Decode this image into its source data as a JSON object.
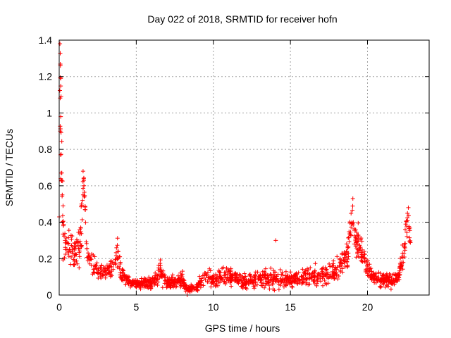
{
  "chart_data": {
    "type": "scatter",
    "title": "Day 022 of 2018, SRMTID for receiver hofn",
    "xlabel": "GPS time / hours",
    "ylabel": "SRMTID / TECUs",
    "xlim": [
      0,
      24
    ],
    "ylim": [
      0,
      1.4
    ],
    "xticks": [
      0,
      5,
      10,
      15,
      20
    ],
    "yticks": [
      0,
      0.2,
      0.4,
      0.6,
      0.8,
      1.0,
      1.2,
      1.4
    ],
    "xtick_labels": [
      "0",
      "5",
      "10",
      "15",
      "20"
    ],
    "ytick_labels": [
      "0",
      "0.2",
      "0.4",
      "0.6",
      "0.8",
      "1",
      "1.2",
      "1.4"
    ],
    "grid": true,
    "marker": "+",
    "color": "#ff0000",
    "series": [
      {
        "name": "SRMTID",
        "profile": [
          [
            0.0,
            0.3,
            0.1
          ],
          [
            0.05,
            1.38,
            0.45
          ],
          [
            0.1,
            1.0,
            0.35
          ],
          [
            0.2,
            0.45,
            0.2
          ],
          [
            0.3,
            0.28,
            0.1
          ],
          [
            0.5,
            0.25,
            0.08
          ],
          [
            0.8,
            0.26,
            0.09
          ],
          [
            1.0,
            0.22,
            0.09
          ],
          [
            1.3,
            0.26,
            0.1
          ],
          [
            1.5,
            0.45,
            0.2
          ],
          [
            1.6,
            0.63,
            0.05
          ],
          [
            1.8,
            0.24,
            0.1
          ],
          [
            2.0,
            0.18,
            0.06
          ],
          [
            2.5,
            0.14,
            0.05
          ],
          [
            3.0,
            0.13,
            0.05
          ],
          [
            3.5,
            0.14,
            0.05
          ],
          [
            3.8,
            0.22,
            0.08
          ],
          [
            4.0,
            0.12,
            0.05
          ],
          [
            4.5,
            0.07,
            0.03
          ],
          [
            5.0,
            0.06,
            0.02
          ],
          [
            6.0,
            0.07,
            0.03
          ],
          [
            6.5,
            0.12,
            0.06
          ],
          [
            7.0,
            0.07,
            0.03
          ],
          [
            8.0,
            0.08,
            0.04
          ],
          [
            8.3,
            0.03,
            0.02
          ],
          [
            9.0,
            0.05,
            0.03
          ],
          [
            9.5,
            0.1,
            0.05
          ],
          [
            10.0,
            0.08,
            0.04
          ],
          [
            11.0,
            0.11,
            0.05
          ],
          [
            12.0,
            0.07,
            0.04
          ],
          [
            13.0,
            0.09,
            0.05
          ],
          [
            14.0,
            0.09,
            0.06
          ],
          [
            15.0,
            0.08,
            0.04
          ],
          [
            16.0,
            0.1,
            0.05
          ],
          [
            17.0,
            0.11,
            0.05
          ],
          [
            18.0,
            0.14,
            0.06
          ],
          [
            18.7,
            0.22,
            0.08
          ],
          [
            19.0,
            0.45,
            0.08
          ],
          [
            19.3,
            0.3,
            0.1
          ],
          [
            19.6,
            0.25,
            0.08
          ],
          [
            20.0,
            0.15,
            0.05
          ],
          [
            20.5,
            0.09,
            0.04
          ],
          [
            21.5,
            0.08,
            0.04
          ],
          [
            22.0,
            0.1,
            0.04
          ],
          [
            22.3,
            0.2,
            0.08
          ],
          [
            22.6,
            0.4,
            0.08
          ],
          [
            22.8,
            0.32,
            0.08
          ]
        ],
        "spikes": [
          [
            0.05,
            1.38
          ],
          [
            0.08,
            1.26
          ],
          [
            0.1,
            1.19
          ],
          [
            0.12,
            1.09
          ],
          [
            0.1,
            0.98
          ],
          [
            0.07,
            0.9
          ],
          [
            0.09,
            0.77
          ],
          [
            0.12,
            0.67
          ],
          [
            0.15,
            0.63
          ],
          [
            0.2,
            0.55
          ],
          [
            0.25,
            0.49
          ],
          [
            1.55,
            0.68
          ],
          [
            1.6,
            0.63
          ],
          [
            1.45,
            0.5
          ],
          [
            14.05,
            0.3
          ],
          [
            19.05,
            0.53
          ],
          [
            22.65,
            0.48
          ],
          [
            8.3,
            0.0
          ]
        ],
        "n_points": 1500
      }
    ]
  }
}
